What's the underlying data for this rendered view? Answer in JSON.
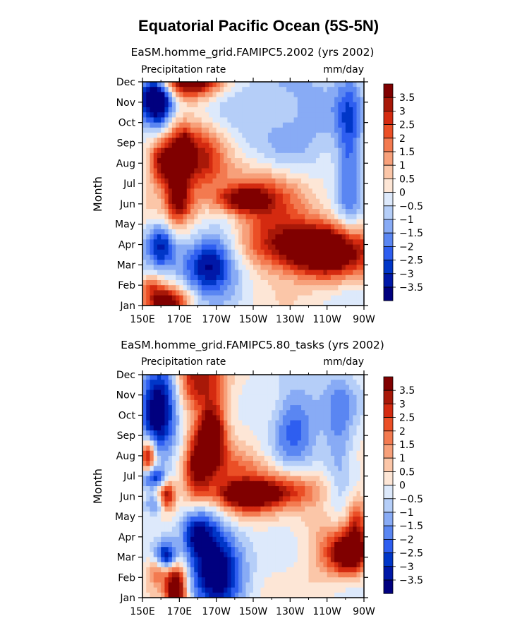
{
  "figure": {
    "title": "Equatorial Pacific Ocean (5S-5N)"
  },
  "palette": [
    "#00007f",
    "#0018a8",
    "#0036c8",
    "#2e5ef0",
    "#5a86f2",
    "#88abf5",
    "#b5cef8",
    "#dde9fb",
    "#fde6d6",
    "#fbc6a8",
    "#f7a07a",
    "#f37a50",
    "#eb4f26",
    "#d42a10",
    "#a81808",
    "#800000"
  ],
  "chart_data": [
    {
      "type": "heatmap",
      "title": "EaSM.homme_grid.FAMIPC5.2002 (yrs 2002)",
      "left_string": "Precipitation rate",
      "right_string": "mm/day",
      "xlabel": "",
      "ylabel": "Month",
      "x_ticks": [
        "150E",
        "170E",
        "170W",
        "150W",
        "130W",
        "110W",
        "90W"
      ],
      "y_ticks": [
        "Jan",
        "Feb",
        "Mar",
        "Apr",
        "May",
        "Jun",
        "Jul",
        "Aug",
        "Sep",
        "Oct",
        "Nov",
        "Dec"
      ],
      "levels": [
        -3.5,
        -3,
        -2.5,
        -2,
        -1.5,
        -1,
        -0.5,
        0,
        0.5,
        1,
        1.5,
        2,
        2.5,
        3,
        3.5
      ],
      "colorbar_labels": [
        "3.5",
        "3",
        "2.5",
        "2",
        "1.5",
        "1",
        "0.5",
        "0",
        "−0.5",
        "−1",
        "−1.5",
        "−2",
        "−2.5",
        "−3",
        "−3.5"
      ],
      "blobs": [
        {
          "x": 158,
          "y": 10,
          "a": -5.0,
          "sx": 7,
          "sy": 0.9
        },
        {
          "x": 156,
          "y": 10.4,
          "a": -1.5,
          "sx": 5,
          "sy": 0.5
        },
        {
          "x": 175,
          "y": 11.1,
          "a": 5.0,
          "sx": 12,
          "sy": 0.6
        },
        {
          "x": 180,
          "y": 7.3,
          "a": 3.2,
          "sx": 10,
          "sy": 1.2
        },
        {
          "x": 168,
          "y": 6.4,
          "a": 3.0,
          "sx": 4,
          "sy": 1.6
        },
        {
          "x": 172,
          "y": 5,
          "a": 1.5,
          "sx": 5,
          "sy": 0.6
        },
        {
          "x": 160,
          "y": 7.1,
          "a": 3.5,
          "sx": 5,
          "sy": 0.8
        },
        {
          "x": 173,
          "y": 7.4,
          "a": 3.0,
          "sx": 3,
          "sy": 0.8
        },
        {
          "x": 203,
          "y": 5.2,
          "a": 3.2,
          "sx": 10,
          "sy": 0.45
        },
        {
          "x": 215,
          "y": 5.6,
          "a": 2.0,
          "sx": 15,
          "sy": 1.0
        },
        {
          "x": 250,
          "y": 2.6,
          "a": 4.5,
          "sx": 18,
          "sy": 0.9
        },
        {
          "x": 230,
          "y": 3.0,
          "a": 2.0,
          "sx": 20,
          "sy": 0.8
        },
        {
          "x": 210,
          "y": 4.0,
          "a": 1.2,
          "sx": 30,
          "sy": 1.5
        },
        {
          "x": 160,
          "y": 3.0,
          "a": -3.0,
          "sx": 6,
          "sy": 0.8
        },
        {
          "x": 185,
          "y": 2.0,
          "a": -3.5,
          "sx": 10,
          "sy": 1.0
        },
        {
          "x": 195,
          "y": 3.0,
          "a": -1.5,
          "sx": 10,
          "sy": 1.5
        },
        {
          "x": 163,
          "y": 0.2,
          "a": 4.0,
          "sx": 8,
          "sy": 0.5
        },
        {
          "x": 155,
          "y": 1.0,
          "a": 1.5,
          "sx": 4,
          "sy": 0.4
        },
        {
          "x": 225,
          "y": 9.0,
          "a": -1.0,
          "sx": 25,
          "sy": 2.5
        },
        {
          "x": 262,
          "y": 7.5,
          "a": -2.2,
          "sx": 5,
          "sy": 3.0
        },
        {
          "x": 240,
          "y": 10.0,
          "a": -0.5,
          "sx": 15,
          "sy": 1.5
        }
      ]
    },
    {
      "type": "heatmap",
      "title": "EaSM.homme_grid.FAMIPC5.80_tasks (yrs 2002)",
      "left_string": "Precipitation rate",
      "right_string": "mm/day",
      "xlabel": "",
      "ylabel": "Month",
      "x_ticks": [
        "150E",
        "170E",
        "170W",
        "150W",
        "130W",
        "110W",
        "90W"
      ],
      "y_ticks": [
        "Jan",
        "Feb",
        "Mar",
        "Apr",
        "May",
        "Jun",
        "Jul",
        "Aug",
        "Sep",
        "Oct",
        "Nov",
        "Dec"
      ],
      "levels": [
        -3.5,
        -3,
        -2.5,
        -2,
        -1.5,
        -1,
        -0.5,
        0,
        0.5,
        1,
        1.5,
        2,
        2.5,
        3,
        3.5
      ],
      "colorbar_labels": [
        "3.5",
        "3",
        "2.5",
        "2",
        "1.5",
        "1",
        "0.5",
        "0",
        "−0.5",
        "−1",
        "−1.5",
        "−2",
        "−2.5",
        "−3",
        "−3.5"
      ],
      "blobs": [
        {
          "x": 156,
          "y": 9.3,
          "a": -3.5,
          "sx": 6,
          "sy": 1.3
        },
        {
          "x": 163,
          "y": 9.5,
          "a": -2.0,
          "sx": 6,
          "sy": 1.5
        },
        {
          "x": 153,
          "y": 7.0,
          "a": 4.0,
          "sx": 3,
          "sy": 0.6
        },
        {
          "x": 156,
          "y": 5.9,
          "a": -3.0,
          "sx": 5,
          "sy": 0.4
        },
        {
          "x": 163,
          "y": 5.0,
          "a": 3.5,
          "sx": 3,
          "sy": 0.5
        },
        {
          "x": 157,
          "y": 4.6,
          "a": -2.0,
          "sx": 5,
          "sy": 0.4
        },
        {
          "x": 188,
          "y": 8.0,
          "a": 4.5,
          "sx": 5,
          "sy": 1.0
        },
        {
          "x": 180,
          "y": 6.5,
          "a": 3.5,
          "sx": 5,
          "sy": 1.2
        },
        {
          "x": 185,
          "y": 10.5,
          "a": 3.0,
          "sx": 8,
          "sy": 1.2
        },
        {
          "x": 175,
          "y": 11.0,
          "a": 1.5,
          "sx": 5,
          "sy": 1.0
        },
        {
          "x": 206,
          "y": 5.1,
          "a": 4.5,
          "sx": 12,
          "sy": 0.45
        },
        {
          "x": 230,
          "y": 5.3,
          "a": 2.0,
          "sx": 15,
          "sy": 0.6
        },
        {
          "x": 200,
          "y": 6.2,
          "a": 2.0,
          "sx": 15,
          "sy": 0.8
        },
        {
          "x": 205,
          "y": 4.3,
          "a": 1.5,
          "sx": 10,
          "sy": 0.5
        },
        {
          "x": 190,
          "y": 1.5,
          "a": -4.5,
          "sx": 10,
          "sy": 1.4
        },
        {
          "x": 180,
          "y": 3.2,
          "a": -3.0,
          "sx": 6,
          "sy": 0.8
        },
        {
          "x": 168,
          "y": 0.5,
          "a": 5.0,
          "sx": 4,
          "sy": 0.9
        },
        {
          "x": 163,
          "y": 2.0,
          "a": -3.5,
          "sx": 4,
          "sy": 0.5
        },
        {
          "x": 158,
          "y": 1.3,
          "a": 2.0,
          "sx": 4,
          "sy": 0.5
        },
        {
          "x": 262,
          "y": 2.2,
          "a": 4.5,
          "sx": 7,
          "sy": 0.7
        },
        {
          "x": 266,
          "y": 3.8,
          "a": 2.5,
          "sx": 4,
          "sy": 1.0
        },
        {
          "x": 250,
          "y": 2.5,
          "a": 1.2,
          "sx": 10,
          "sy": 1.5
        },
        {
          "x": 232,
          "y": 8.5,
          "a": -1.8,
          "sx": 8,
          "sy": 1.5
        },
        {
          "x": 257,
          "y": 8.0,
          "a": -1.5,
          "sx": 6,
          "sy": 2.5
        },
        {
          "x": 240,
          "y": 9.5,
          "a": -0.5,
          "sx": 15,
          "sy": 2.0
        }
      ]
    }
  ]
}
